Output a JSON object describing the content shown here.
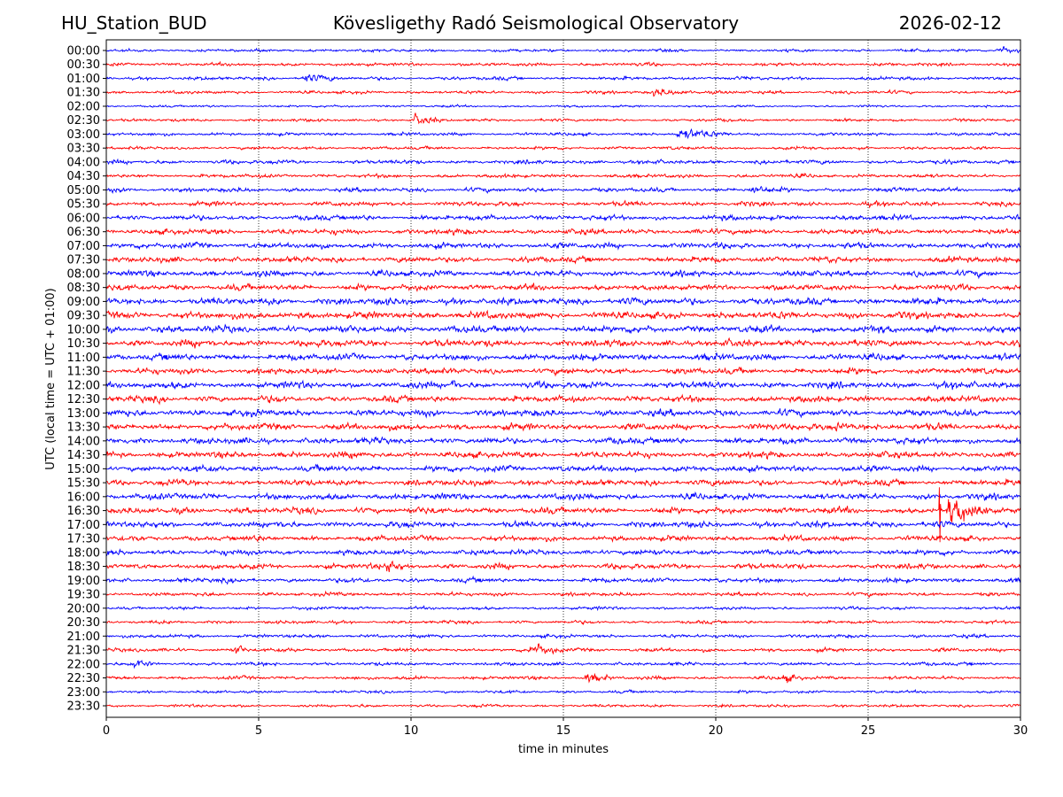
{
  "header": {
    "station": "HU_Station_BUD",
    "observatory": "Kövesligethy Radó Seismological Observatory",
    "date": "2026-02-12"
  },
  "chart_data": {
    "type": "line",
    "title": "Kövesligethy Radó Seismological Observatory",
    "xlabel": "time in minutes",
    "ylabel": "UTC (local time = UTC + 01:00)",
    "xlim": [
      0,
      30
    ],
    "xticks": [
      0,
      5,
      10,
      15,
      20,
      25,
      30
    ],
    "grid": "vertical dotted at x ticks",
    "colors": [
      "#0000ff",
      "#ff0000"
    ],
    "traces": [
      "00:00",
      "00:30",
      "01:00",
      "01:30",
      "02:00",
      "02:30",
      "03:00",
      "03:30",
      "04:00",
      "04:30",
      "05:00",
      "05:30",
      "06:00",
      "06:30",
      "07:00",
      "07:30",
      "08:00",
      "08:30",
      "09:00",
      "09:30",
      "10:00",
      "10:30",
      "11:00",
      "11:30",
      "12:00",
      "12:30",
      "13:00",
      "13:30",
      "14:00",
      "14:30",
      "15:00",
      "15:30",
      "16:00",
      "16:30",
      "17:00",
      "17:30",
      "18:00",
      "18:30",
      "19:00",
      "19:30",
      "20:00",
      "20:30",
      "21:00",
      "21:30",
      "22:00",
      "22:30",
      "23:00",
      "23:30"
    ],
    "noise_level": [
      1.0,
      1.2,
      1.2,
      1.1,
      0.8,
      1.0,
      1.1,
      1.1,
      1.4,
      1.3,
      1.5,
      1.6,
      1.8,
      1.9,
      2.0,
      2.0,
      2.1,
      2.1,
      2.4,
      2.5,
      2.5,
      2.4,
      2.3,
      2.1,
      2.3,
      2.2,
      2.3,
      2.3,
      2.2,
      2.2,
      2.2,
      2.1,
      2.2,
      2.2,
      2.1,
      1.9,
      1.9,
      1.9,
      1.6,
      1.3,
      1.1,
      1.1,
      1.2,
      1.3,
      1.2,
      1.2,
      1.0,
      1.0
    ],
    "events": [
      {
        "trace": "00:00",
        "minute": 29.3,
        "duration": 0.8,
        "amplitude": 3
      },
      {
        "trace": "01:00",
        "minute": 6.5,
        "duration": 1.0,
        "amplitude": 2.5
      },
      {
        "trace": "01:30",
        "minute": 18.0,
        "duration": 1.5,
        "amplitude": 2.5
      },
      {
        "trace": "02:30",
        "minute": 10.2,
        "duration": 0.8,
        "amplitude": 3
      },
      {
        "trace": "03:00",
        "minute": 18.8,
        "duration": 1.8,
        "amplitude": 3
      },
      {
        "trace": "05:00",
        "minute": 21.2,
        "duration": 0.6,
        "amplitude": 2.5
      },
      {
        "trace": "12:00",
        "minute": 11.4,
        "duration": 0.1,
        "amplitude": 5
      },
      {
        "trace": "13:30",
        "minute": 24.0,
        "duration": 1.0,
        "amplitude": 2
      },
      {
        "trace": "16:30",
        "minute": 27.7,
        "duration": 1.4,
        "amplitude": 9
      },
      {
        "trace": "16:30",
        "minute": 27.35,
        "duration": 0.05,
        "amplitude": 45
      },
      {
        "trace": "18:30",
        "minute": 9.3,
        "duration": 0.8,
        "amplitude": 3
      },
      {
        "trace": "21:30",
        "minute": 4.3,
        "duration": 0.3,
        "amplitude": 3.5
      },
      {
        "trace": "21:30",
        "minute": 14.0,
        "duration": 1.0,
        "amplitude": 4
      },
      {
        "trace": "22:00",
        "minute": 1.0,
        "duration": 0.5,
        "amplitude": 2.5
      },
      {
        "trace": "22:30",
        "minute": 15.8,
        "duration": 0.8,
        "amplitude": 3
      },
      {
        "trace": "22:30",
        "minute": 22.3,
        "duration": 0.6,
        "amplitude": 2.5
      }
    ]
  }
}
